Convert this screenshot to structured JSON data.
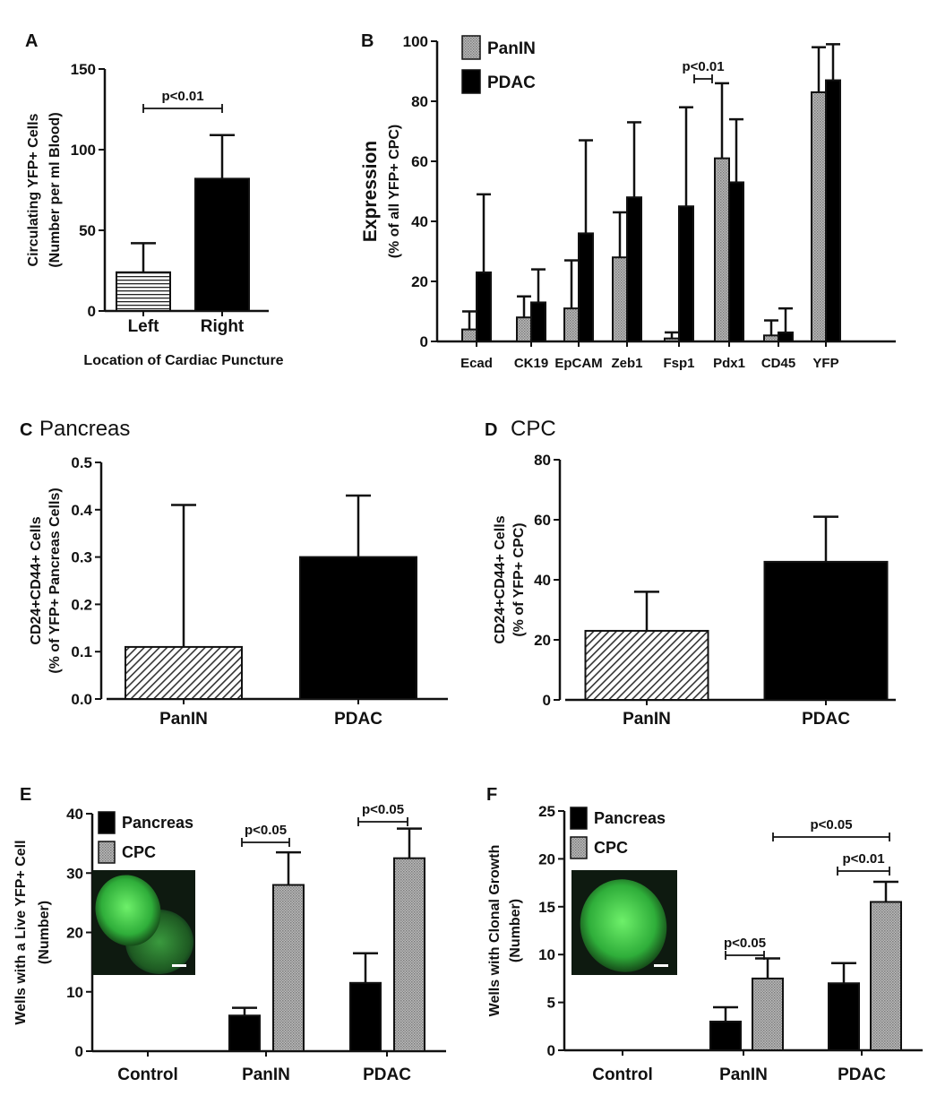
{
  "chart_data": [
    {
      "letter": "A",
      "title": "",
      "type": "bar",
      "ylabel": [
        "Circulating YFP+ Cells",
        "(Number per ml Blood)"
      ],
      "xlabel": "Location of Cardiac Puncture",
      "ylim": [
        0,
        150
      ],
      "yticks": [
        0,
        50,
        100,
        150
      ],
      "categories": [
        "Left",
        "Right"
      ],
      "series": [
        {
          "values": [
            24,
            82
          ],
          "errors": [
            42,
            109
          ],
          "fills": [
            "hstripe",
            "black"
          ]
        }
      ],
      "annotations": [
        {
          "text": "p<0.01",
          "between": [
            "Left",
            "Right"
          ]
        }
      ],
      "legend": []
    },
    {
      "letter": "B",
      "title": "",
      "type": "bar",
      "ylabel": [
        "Expression",
        "(% of all YFP+ CPC)"
      ],
      "xlabel": "",
      "ylim": [
        0,
        100
      ],
      "yticks": [
        0,
        20,
        40,
        60,
        80,
        100
      ],
      "categories": [
        "Ecad",
        "CK19",
        "EpCAM",
        "Zeb1",
        "Fsp1",
        "Pdx1",
        "CD45",
        "YFP"
      ],
      "series": [
        {
          "name": "PanIN",
          "fill": "gray",
          "values": [
            4,
            8,
            11,
            28,
            1,
            61,
            2,
            83
          ],
          "errors": [
            10,
            15,
            27,
            43,
            3,
            86,
            7,
            98
          ]
        },
        {
          "name": "PDAC",
          "fill": "black",
          "values": [
            23,
            13,
            36,
            48,
            45,
            53,
            3,
            87
          ],
          "errors": [
            49,
            24,
            67,
            73,
            78,
            74,
            11,
            99
          ]
        }
      ],
      "annotations": [
        {
          "text": "p<0.01",
          "between": [
            "Fsp1 PanIN",
            "Fsp1 PDAC"
          ]
        }
      ],
      "legend": [
        "PanIN",
        "PDAC"
      ],
      "legend_position": "top-left"
    },
    {
      "letter": "C",
      "title": "Pancreas",
      "type": "bar",
      "ylabel": [
        "CD24+CD44+ Cells",
        "(% of YFP+ Pancreas Cells)"
      ],
      "xlabel": "",
      "ylim": [
        0,
        0.5
      ],
      "yticks": [
        0.0,
        0.1,
        0.2,
        0.3,
        0.4,
        0.5
      ],
      "ytick_labels": [
        "0.0",
        "0.1",
        "0.2",
        "0.3",
        "0.4",
        "0.5"
      ],
      "categories": [
        "PanIN",
        "PDAC"
      ],
      "series": [
        {
          "values": [
            0.11,
            0.3
          ],
          "errors": [
            0.41,
            0.43
          ],
          "fills": [
            "diag",
            "black"
          ]
        }
      ],
      "annotations": [],
      "legend": []
    },
    {
      "letter": "D",
      "title": "CPC",
      "type": "bar",
      "ylabel": [
        "CD24+CD44+ Cells",
        "(% of YFP+ CPC)"
      ],
      "xlabel": "",
      "ylim": [
        0,
        80
      ],
      "yticks": [
        0,
        20,
        40,
        60,
        80
      ],
      "categories": [
        "PanIN",
        "PDAC"
      ],
      "series": [
        {
          "values": [
            23,
            46
          ],
          "errors": [
            36,
            61
          ],
          "fills": [
            "diag",
            "black"
          ]
        }
      ],
      "annotations": [],
      "legend": []
    },
    {
      "letter": "E",
      "title": "",
      "type": "bar",
      "ylabel": [
        "Wells with a Live YFP+ Cell",
        "(Number)"
      ],
      "xlabel": "",
      "ylim": [
        0,
        40
      ],
      "yticks": [
        0,
        10,
        20,
        30,
        40
      ],
      "categories": [
        "Control",
        "PanIN",
        "PDAC"
      ],
      "series": [
        {
          "name": "Pancreas",
          "fill": "black",
          "values": [
            0,
            6,
            11.5
          ],
          "errors": [
            0,
            7.3,
            16.5
          ]
        },
        {
          "name": "CPC",
          "fill": "gray",
          "values": [
            0,
            28,
            32.5
          ],
          "errors": [
            0,
            33.5,
            37.5
          ]
        }
      ],
      "annotations": [
        {
          "text": "p<0.05",
          "between": [
            "PanIN Pancreas",
            "PanIN CPC"
          ]
        },
        {
          "text": "p<0.05",
          "between": [
            "PDAC Pancreas",
            "PDAC CPC"
          ]
        }
      ],
      "legend": [
        "Pancreas",
        "CPC"
      ],
      "legend_position": "top-left",
      "inset": "green-fluorescent-micrograph"
    },
    {
      "letter": "F",
      "title": "",
      "type": "bar",
      "ylabel": [
        "Wells with Clonal Growth",
        "(Number)"
      ],
      "xlabel": "",
      "ylim": [
        0,
        25
      ],
      "yticks": [
        0,
        5,
        10,
        15,
        20,
        25
      ],
      "categories": [
        "Control",
        "PanIN",
        "PDAC"
      ],
      "series": [
        {
          "name": "Pancreas",
          "fill": "black",
          "values": [
            0,
            3,
            7
          ],
          "errors": [
            0,
            4.5,
            9.1
          ]
        },
        {
          "name": "CPC",
          "fill": "gray",
          "values": [
            0,
            7.5,
            15.5
          ],
          "errors": [
            0,
            9.6,
            17.6
          ]
        }
      ],
      "annotations": [
        {
          "text": "p<0.05",
          "between": [
            "PanIN Pancreas",
            "PanIN CPC"
          ]
        },
        {
          "text": "p<0.05",
          "between": [
            "PanIN CPC",
            "PDAC CPC"
          ]
        },
        {
          "text": "p<0.01",
          "between": [
            "PDAC Pancreas",
            "PDAC CPC"
          ]
        }
      ],
      "legend": [
        "Pancreas",
        "CPC"
      ],
      "legend_position": "top-left",
      "inset": "green-fluorescent-micrograph"
    }
  ]
}
